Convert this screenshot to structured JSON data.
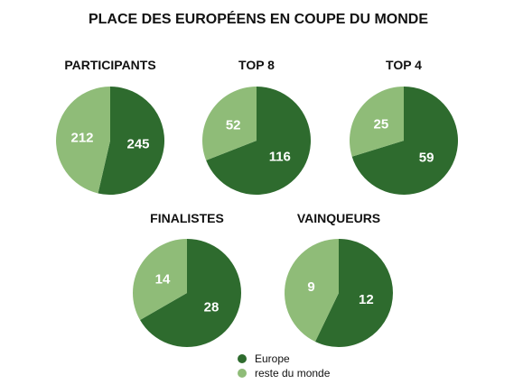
{
  "chart_data": {
    "type": "pie",
    "title": "PLACE DES EUROPÉENS EN COUPE DU MONDE",
    "legend": {
      "placement": "bottom-center",
      "entries": [
        {
          "label": "Europe",
          "color": "#2e6b2e"
        },
        {
          "label": "reste du monde",
          "color": "#8fbc78"
        }
      ]
    },
    "pies": [
      {
        "title": "PARTICIPANTS",
        "values": [
          245,
          212
        ]
      },
      {
        "title": "TOP 8",
        "values": [
          116,
          52
        ]
      },
      {
        "title": "TOP 4",
        "values": [
          59,
          25
        ]
      },
      {
        "title": "FINALISTES",
        "values": [
          28,
          14
        ]
      },
      {
        "title": "VAINQUEURS",
        "values": [
          12,
          9
        ]
      }
    ]
  }
}
